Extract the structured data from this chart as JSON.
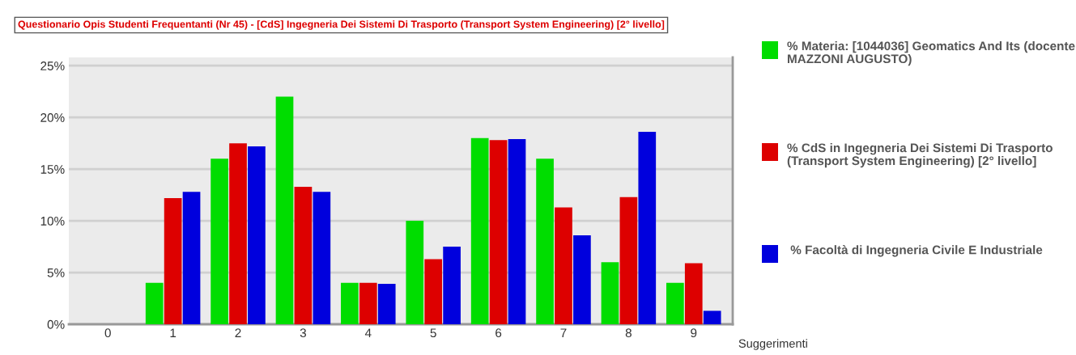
{
  "chart_data": {
    "type": "bar",
    "title": "Questionario Opis Studenti Frequentanti (Nr 45) - [CdS] Ingegneria Dei Sistemi Di Trasporto (Transport System Engineering) [2° livello]",
    "xlabel": "Suggerimenti",
    "categories": [
      "0",
      "1",
      "2",
      "3",
      "4",
      "5",
      "6",
      "7",
      "8",
      "9"
    ],
    "series": [
      {
        "name": "% Materia: [1044036] Geomatics And Its (docente MAZZONI AUGUSTO)",
        "color": "#00dd00",
        "values": [
          0,
          4,
          16,
          22,
          4,
          10,
          18,
          16,
          6,
          4
        ]
      },
      {
        "name": "% CdS in Ingegneria Dei Sistemi Di Trasporto (Transport System Engineering) [2° livello]",
        "color": "#dd0000",
        "values": [
          0,
          12.2,
          17.5,
          13.3,
          4,
          6.3,
          17.8,
          11.3,
          12.3,
          5.9
        ]
      },
      {
        "name": " % Facoltà di Ingegneria Civile E Industriale",
        "color": "#0000dd",
        "values": [
          0,
          12.8,
          17.2,
          12.8,
          3.9,
          7.5,
          17.9,
          8.6,
          18.6,
          1.3
        ]
      }
    ],
    "ylim": [
      0,
      25.8
    ],
    "yticks": [
      {
        "value": 0,
        "label": "0%"
      },
      {
        "value": 5,
        "label": "5%"
      },
      {
        "value": 10,
        "label": "10%"
      },
      {
        "value": 15,
        "label": "15%"
      },
      {
        "value": 20,
        "label": "20%"
      },
      {
        "value": 25,
        "label": "25%"
      }
    ],
    "grid": "y",
    "legend": "right"
  }
}
